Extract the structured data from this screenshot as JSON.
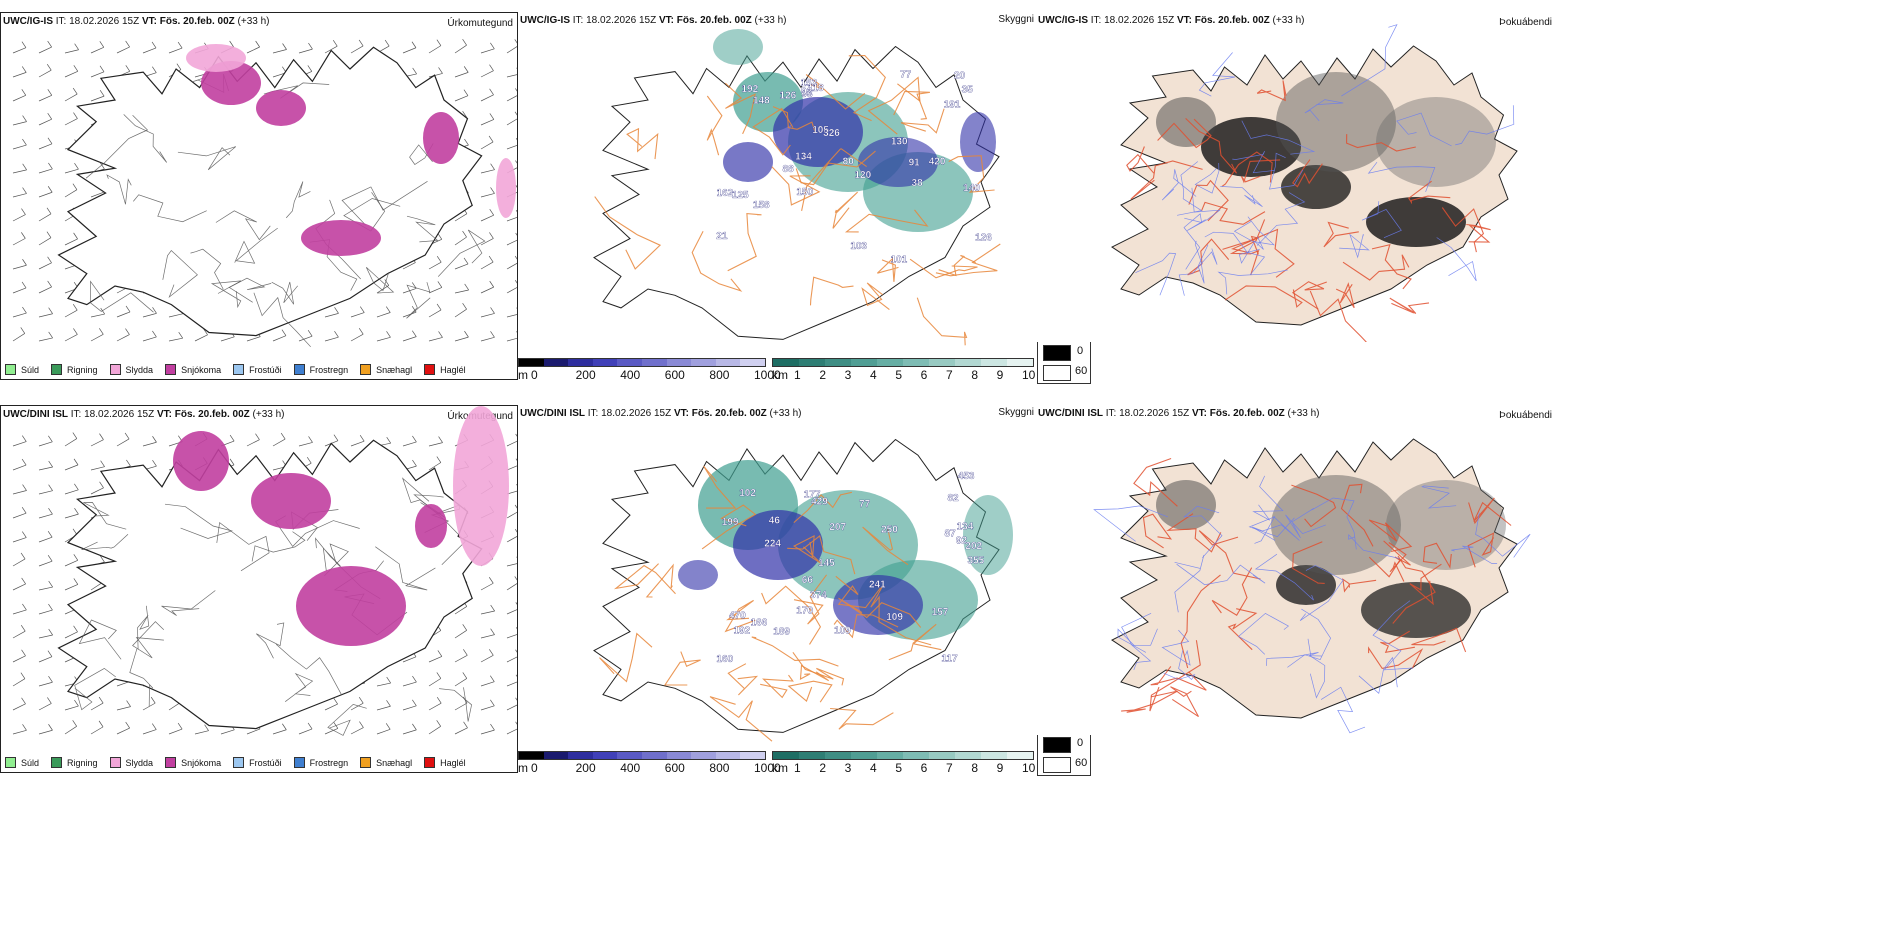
{
  "rows": [
    {
      "ppt": {
        "model": "UWC/IG-IS",
        "it": " IT: 18.02.2026 15Z ",
        "vt": "VT: Fös. 20.feb. 00Z",
        "lead": " (+33 h)",
        "title": "Úrkomutegund"
      },
      "cld": {
        "model": "UWC/IG-IS",
        "it": " IT: 18.02.2026 15Z ",
        "vt": "VT: Fös. 20.feb. 00Z",
        "lead": " (+33 h)",
        "title": "Skyggni"
      },
      "fog": {
        "model": "UWC/IG-IS",
        "it": " IT: 18.02.2026 15Z ",
        "vt": "VT: Fös. 20.feb. 00Z",
        "lead": " (+33 h)",
        "title": "Þokuábendi"
      },
      "labels": [
        "80",
        "162",
        "192",
        "134",
        "101",
        "191",
        "21",
        "126",
        "38",
        "20",
        "150",
        "125",
        "105",
        "140",
        "158",
        "77",
        "126",
        "153",
        "88",
        "120",
        "35",
        "118",
        "148",
        "93",
        "92",
        "326",
        "420",
        "103",
        "130",
        "91"
      ]
    },
    {
      "ppt": {
        "model": "UWC/DINI ISL",
        "it": " IT: 18.02.2026 15Z ",
        "vt": "VT: Fös. 20.feb. 00Z",
        "lead": " (+33 h)",
        "title": "Úrkomutegund"
      },
      "cld": {
        "model": "UWC/DINI ISL",
        "it": " IT: 18.02.2026 15Z ",
        "vt": "VT: Fös. 20.feb. 00Z",
        "lead": " (+33 h)",
        "title": "Skyggni"
      },
      "fog": {
        "model": "UWC/DINI ISL",
        "it": " IT: 18.02.2026 15Z ",
        "vt": "VT: Fös. 20.feb. 00Z",
        "lead": " (+33 h)",
        "title": "Þokuábendi"
      },
      "labels": [
        "355",
        "77",
        "109",
        "109",
        "170",
        "87",
        "82",
        "145",
        "192",
        "160",
        "166",
        "374",
        "66",
        "117",
        "102",
        "46",
        "92",
        "241",
        "202",
        "250",
        "224",
        "134",
        "177",
        "189",
        "207",
        "429",
        "199",
        "157",
        "470",
        "453"
      ]
    }
  ],
  "legend": [
    {
      "label": "Súld",
      "color": "#90ee90"
    },
    {
      "label": "Rigning",
      "color": "#3a9a5a"
    },
    {
      "label": "Slydda",
      "color": "#f2a6d8"
    },
    {
      "label": "Snjókoma",
      "color": "#c13fa0"
    },
    {
      "label": "Frostúði",
      "color": "#9cc7f0"
    },
    {
      "label": "Frostregn",
      "color": "#3f7fd0"
    },
    {
      "label": "Snæhagl",
      "color": "#f0a020"
    },
    {
      "label": "Haglél",
      "color": "#e01010"
    }
  ],
  "cbar_height": {
    "unit": "m",
    "ticks": [
      "0",
      "200",
      "400",
      "600",
      "800",
      "1000"
    ],
    "colors": [
      "#000000",
      "#1a1a6e",
      "#2e2e9e",
      "#4040b8",
      "#5a5ac4",
      "#7070cc",
      "#8a8ad6",
      "#a0a0de",
      "#b8b8e6",
      "#d0d0f0"
    ]
  },
  "cbar_vis": {
    "unit": "km",
    "ticks": [
      "1",
      "2",
      "3",
      "4",
      "5",
      "6",
      "7",
      "8",
      "9",
      "10"
    ],
    "colors": [
      "#1e6e64",
      "#2e7e74",
      "#3f8e84",
      "#509e94",
      "#66aea4",
      "#7ebcb4",
      "#98cac2",
      "#b2d8d2",
      "#cce6e2",
      "#e6f3f1"
    ]
  },
  "fog_legend": {
    "max_label": "0",
    "min_label": "60"
  },
  "colors": {
    "land": "#f2e2d4",
    "coast": "#222222",
    "roads": "#e8863a",
    "roads_fog": "#e05030",
    "rivers": "#6a7cf0",
    "snow": "#c13fa0",
    "sleet": "#f2a6d8",
    "cloud_teal": "#3f9e90",
    "cloud_blue": "#3030a8"
  }
}
